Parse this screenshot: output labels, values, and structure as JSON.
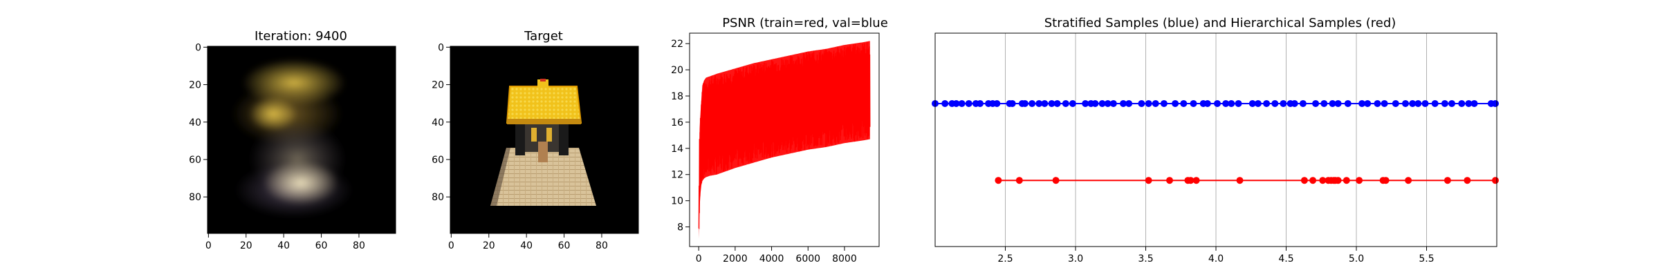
{
  "colors": {
    "train": "#ff0000",
    "stratified": "#0000ff",
    "hierarchical": "#ff0000",
    "grid": "#b0b0b0",
    "image_bg": "#000000"
  },
  "chart_data": [
    {
      "type": "image",
      "title": "Iteration: 9400",
      "x_ticks": [
        "0",
        "20",
        "40",
        "60",
        "80"
      ],
      "y_ticks": [
        "0",
        "20",
        "40",
        "60",
        "80"
      ],
      "xlim": [
        0,
        100
      ],
      "ylim": [
        100,
        0
      ]
    },
    {
      "type": "image",
      "title": "Target",
      "x_ticks": [
        "0",
        "20",
        "40",
        "60",
        "80"
      ],
      "y_ticks": [
        "0",
        "20",
        "40",
        "60",
        "80"
      ],
      "xlim": [
        0,
        100
      ],
      "ylim": [
        100,
        0
      ]
    },
    {
      "type": "line",
      "title": "PSNR (train=red, val=blue",
      "xlim": [
        -500,
        9900
      ],
      "ylim": [
        6.5,
        22.8
      ],
      "x_ticks": [
        0,
        2000,
        4000,
        6000,
        8000
      ],
      "y_ticks": [
        8,
        10,
        12,
        14,
        16,
        18,
        20,
        22
      ],
      "series": [
        {
          "color": "#ff0000",
          "x": [
            0,
            50,
            100,
            150,
            200,
            300,
            400,
            600,
            1000,
            2000,
            3000,
            4000,
            5000,
            6000,
            7000,
            8000,
            9000,
            9400
          ],
          "lower": [
            7.1,
            9.5,
            10.6,
            11.2,
            11.5,
            11.7,
            11.8,
            11.9,
            12.0,
            12.5,
            12.9,
            13.3,
            13.6,
            13.9,
            14.1,
            14.4,
            14.6,
            14.7
          ],
          "upper": [
            8.0,
            15.5,
            16.8,
            17.8,
            18.8,
            19.2,
            19.4,
            19.5,
            19.7,
            20.1,
            20.5,
            20.8,
            21.1,
            21.4,
            21.6,
            21.9,
            22.1,
            22.2
          ]
        }
      ]
    },
    {
      "type": "scatter",
      "title": "Stratified  Samples (blue) and Hierarchical Samples (red)",
      "xlim": [
        2.0,
        6.0
      ],
      "x_ticks": [
        2.5,
        3.0,
        3.5,
        4.0,
        4.5,
        5.0,
        5.5
      ],
      "grid": "vertical",
      "series": [
        {
          "color": "#0000ff",
          "level": "upper",
          "x": [
            2.0,
            2.07,
            2.12,
            2.15,
            2.19,
            2.24,
            2.29,
            2.32,
            2.38,
            2.41,
            2.44,
            2.53,
            2.55,
            2.62,
            2.64,
            2.69,
            2.74,
            2.78,
            2.83,
            2.87,
            2.93,
            2.98,
            3.07,
            3.11,
            3.14,
            3.19,
            3.23,
            3.27,
            3.34,
            3.38,
            3.47,
            3.52,
            3.57,
            3.63,
            3.71,
            3.77,
            3.84,
            3.91,
            3.94,
            4.01,
            4.07,
            4.11,
            4.16,
            4.26,
            4.3,
            4.36,
            4.42,
            4.48,
            4.53,
            4.56,
            4.62,
            4.71,
            4.77,
            4.83,
            4.87,
            4.94,
            5.04,
            5.08,
            5.15,
            5.2,
            5.28,
            5.35,
            5.4,
            5.44,
            5.49,
            5.56,
            5.63,
            5.68,
            5.75,
            5.8,
            5.84,
            5.96,
            5.99
          ]
        },
        {
          "color": "#ff0000",
          "level": "lower",
          "x": [
            2.45,
            2.6,
            2.86,
            3.52,
            3.67,
            3.8,
            3.82,
            3.86,
            4.17,
            4.63,
            4.69,
            4.76,
            4.8,
            4.82,
            4.84,
            4.85,
            4.87,
            4.93,
            5.02,
            5.19,
            5.21,
            5.37,
            5.65,
            5.79,
            5.99
          ]
        }
      ]
    }
  ]
}
